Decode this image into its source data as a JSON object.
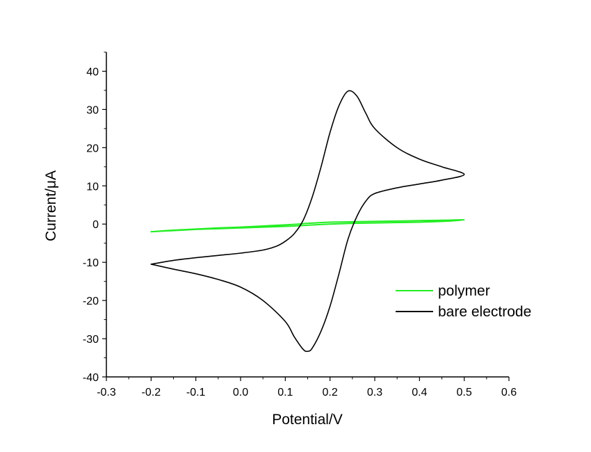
{
  "chart_data": {
    "type": "line",
    "xlabel": "Potential/V",
    "ylabel": "Current/μA",
    "xlim": [
      -0.3,
      0.6
    ],
    "ylim": [
      -40,
      45
    ],
    "x_ticks": [
      "-0.3",
      "-0.2",
      "-0.1",
      "0.0",
      "0.1",
      "0.2",
      "0.3",
      "0.4",
      "0.5",
      "0.6"
    ],
    "y_ticks": [
      "-40",
      "-30",
      "-20",
      "-10",
      "0",
      "10",
      "20",
      "30",
      "40"
    ],
    "legend_position": "bottom-right",
    "series": [
      {
        "name": "polymer",
        "color": "#22ee22",
        "x": [
          -0.2,
          -0.15,
          -0.1,
          -0.05,
          0.0,
          0.05,
          0.1,
          0.13,
          0.15,
          0.2,
          0.25,
          0.3,
          0.35,
          0.4,
          0.45,
          0.5,
          0.45,
          0.4,
          0.35,
          0.3,
          0.25,
          0.2,
          0.15,
          0.12,
          0.1,
          0.05,
          0.0,
          -0.05,
          -0.1,
          -0.15,
          -0.2
        ],
        "y": [
          -2.0,
          -1.6,
          -1.3,
          -1.0,
          -0.8,
          -0.5,
          -0.2,
          0.0,
          0.2,
          0.5,
          0.6,
          0.7,
          0.8,
          0.9,
          1.0,
          1.1,
          0.7,
          0.5,
          0.4,
          0.3,
          0.2,
          0.0,
          -0.3,
          -0.5,
          -0.6,
          -0.8,
          -1.0,
          -1.2,
          -1.4,
          -1.7,
          -2.0
        ]
      },
      {
        "name": "bare electrode",
        "color": "#000000",
        "x": [
          -0.2,
          -0.15,
          -0.1,
          -0.05,
          0.0,
          0.05,
          0.08,
          0.1,
          0.12,
          0.14,
          0.16,
          0.18,
          0.2,
          0.22,
          0.24,
          0.26,
          0.28,
          0.3,
          0.35,
          0.4,
          0.45,
          0.5,
          0.45,
          0.4,
          0.35,
          0.3,
          0.28,
          0.26,
          0.24,
          0.22,
          0.2,
          0.18,
          0.16,
          0.15,
          0.14,
          0.12,
          0.1,
          0.05,
          0.0,
          -0.05,
          -0.1,
          -0.15,
          -0.2
        ],
        "y": [
          -10.5,
          -9.5,
          -8.8,
          -8.2,
          -7.6,
          -6.8,
          -5.8,
          -4.5,
          -2.5,
          1.0,
          7.0,
          15.0,
          24.0,
          31.0,
          34.8,
          33.5,
          29.0,
          25.0,
          20.0,
          17.0,
          15.0,
          13.0,
          11.5,
          10.5,
          9.5,
          8.0,
          6.0,
          2.0,
          -4.0,
          -13.0,
          -21.5,
          -28.0,
          -32.5,
          -33.3,
          -32.8,
          -29.5,
          -25.5,
          -20.0,
          -16.5,
          -14.5,
          -13.0,
          -11.8,
          -10.5
        ]
      }
    ]
  }
}
